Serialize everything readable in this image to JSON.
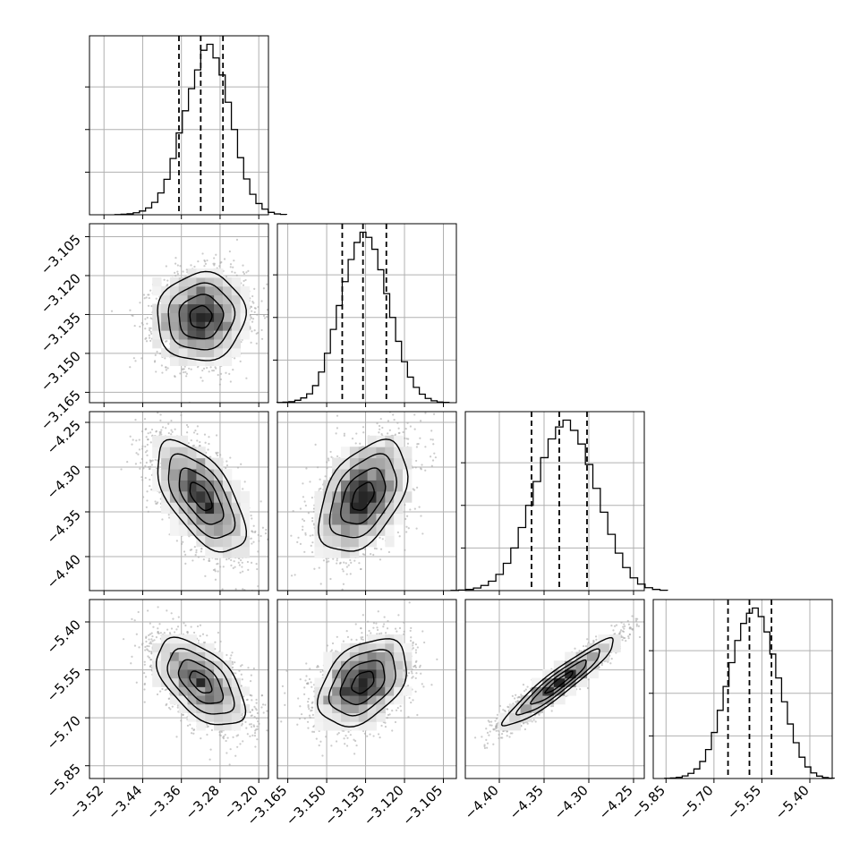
{
  "chart_data": {
    "type": "scatter",
    "subtype": "corner-plot",
    "parameters": [
      {
        "tick_values": [
          -3.52,
          -3.44,
          -3.36,
          -3.28,
          -3.2
        ],
        "tick_labels": [
          "−3.52",
          "−3.44",
          "−3.36",
          "−3.28",
          "−3.20"
        ],
        "range": [
          -3.55,
          -3.18
        ],
        "quantiles": [
          -3.365,
          -3.32,
          -3.274
        ],
        "histogram": [
          1,
          3,
          6,
          12,
          22,
          40,
          73,
          128,
          208,
          330,
          480,
          610,
          740,
          850,
          965,
          1000,
          920,
          820,
          660,
          500,
          335,
          210,
          120,
          66,
          33,
          14,
          5,
          2
        ]
      },
      {
        "tick_values": [
          -3.165,
          -3.15,
          -3.135,
          -3.12,
          -3.105
        ],
        "tick_labels": [
          "−3.165",
          "−3.150",
          "−3.135",
          "−3.120",
          "−3.105"
        ],
        "range": [
          -3.169,
          -3.1
        ],
        "quantiles": [
          -3.144,
          -3.136,
          -3.127
        ],
        "histogram": [
          1,
          3,
          6,
          14,
          28,
          52,
          100,
          180,
          290,
          430,
          570,
          710,
          840,
          940,
          1000,
          970,
          900,
          780,
          640,
          500,
          360,
          240,
          150,
          90,
          50,
          25,
          11,
          4,
          2
        ]
      },
      {
        "tick_values": [
          -4.4,
          -4.35,
          -4.3,
          -4.25
        ],
        "tick_labels": [
          "−4.40",
          "−4.35",
          "−4.30",
          "−4.25"
        ],
        "range": [
          -4.438,
          -4.238
        ],
        "quantiles": [
          -4.364,
          -4.333,
          -4.302
        ],
        "histogram": [
          1,
          3,
          7,
          15,
          30,
          55,
          95,
          160,
          250,
          370,
          500,
          640,
          780,
          890,
          960,
          1000,
          940,
          860,
          740,
          600,
          460,
          330,
          220,
          135,
          75,
          38,
          17,
          7,
          2
        ]
      },
      {
        "tick_values": [
          -5.85,
          -5.7,
          -5.55,
          -5.4
        ],
        "tick_labels": [
          "−5.85",
          "−5.70",
          "−5.55",
          "−5.40"
        ],
        "range": [
          -5.89,
          -5.33
        ],
        "quantiles": [
          -5.656,
          -5.589,
          -5.52
        ],
        "histogram": [
          1,
          3,
          7,
          15,
          30,
          56,
          100,
          170,
          270,
          400,
          540,
          680,
          810,
          910,
          970,
          1000,
          950,
          860,
          730,
          590,
          450,
          320,
          210,
          125,
          68,
          33,
          14,
          6,
          2
        ]
      }
    ],
    "correlations": [
      {
        "row": 1,
        "col": 0,
        "rho": 0.05
      },
      {
        "row": 2,
        "col": 0,
        "rho": -0.6
      },
      {
        "row": 2,
        "col": 1,
        "rho": 0.45
      },
      {
        "row": 3,
        "col": 0,
        "rho": -0.55
      },
      {
        "row": 3,
        "col": 1,
        "rho": 0.4
      },
      {
        "row": 3,
        "col": 2,
        "rho": 0.94
      }
    ],
    "contour_levels_sigma": [
      0.5,
      1.0,
      1.5,
      2.0
    ],
    "grid": true,
    "colors": {
      "line": "#000000",
      "grid": "#b0b0b0",
      "points": "#a8a8a8",
      "density_high": "#000000",
      "density_low": "#ffffff"
    }
  }
}
